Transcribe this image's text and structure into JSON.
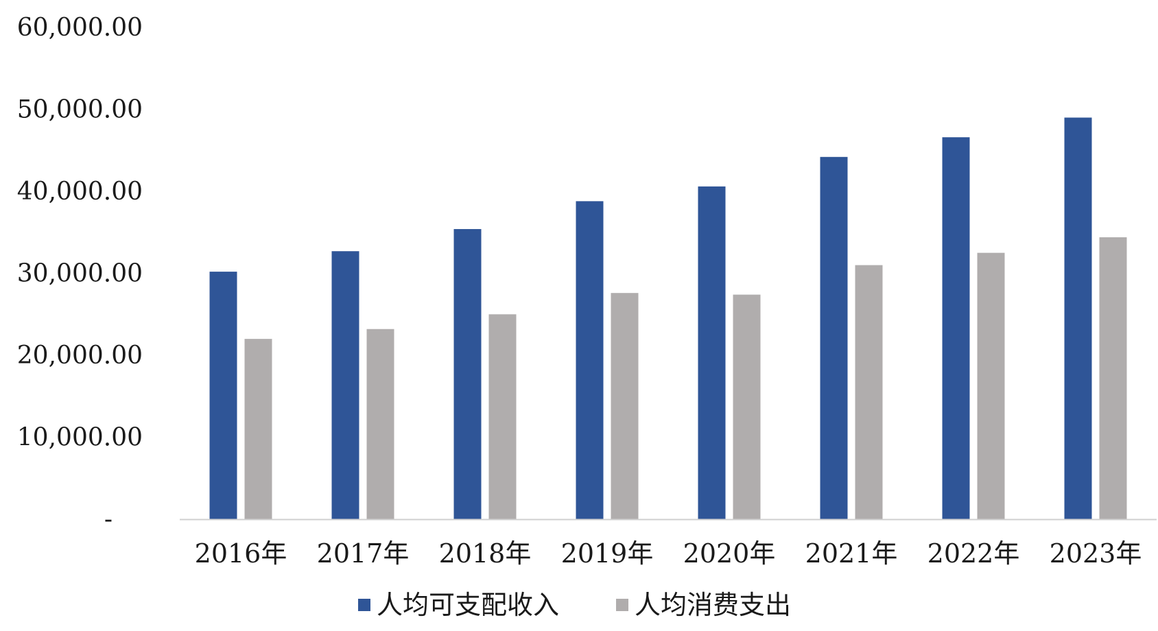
{
  "chart_data": {
    "type": "bar",
    "categories": [
      "2016年",
      "2017年",
      "2018年",
      "2019年",
      "2020年",
      "2021年",
      "2022年",
      "2023年"
    ],
    "series": [
      {
        "name": "人均可支配收入",
        "color": "#2f5597",
        "values": [
          30200,
          32700,
          35400,
          38800,
          40600,
          44200,
          46600,
          49000
        ]
      },
      {
        "name": "人均消费支出",
        "color": "#b0adad",
        "values": [
          22000,
          23200,
          25000,
          27600,
          27400,
          31000,
          32500,
          34400
        ]
      }
    ],
    "y_ticks": [
      "-",
      "10,000.00",
      "20,000.00",
      "30,000.00",
      "40,000.00",
      "50,000.00",
      "60,000.00"
    ],
    "ylim": [
      0,
      60000
    ],
    "grid": false,
    "legend_position": "bottom-center",
    "title": "",
    "xlabel": "",
    "ylabel": ""
  }
}
